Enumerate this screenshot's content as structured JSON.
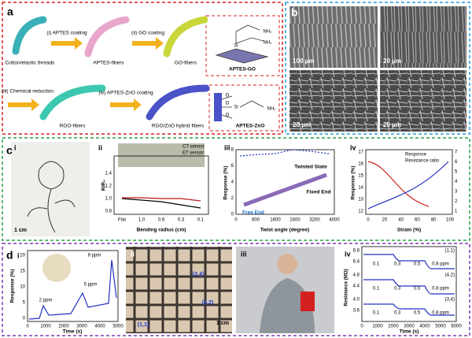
{
  "a": {
    "label": "a",
    "fibers": [
      "Cotton/elastic threads",
      "APTES-fibers",
      "GO-fibers",
      "RGO-fibers",
      "RGO/ZnO hybrid fibers"
    ],
    "steps": [
      "(i) APTES coating",
      "(ii) GO coating",
      "(iii) Chemical reduction",
      "(iv) APTES-ZnO coating"
    ],
    "insets": [
      "APTES-GO",
      "APTES-ZnO"
    ],
    "chem": {
      "si": "Si",
      "nh2": "NH₂",
      "o": "O"
    }
  },
  "b": {
    "label": "b",
    "scale_bars": [
      "100 μm",
      "20 μm",
      "20 μm",
      "20 μm"
    ]
  },
  "c": {
    "label": "c",
    "i": {
      "label": "i",
      "scale": "1 cm"
    },
    "ii": {
      "label": "ii",
      "ylabel": "R/R₀",
      "xlabel": "Bending radius (cm)",
      "xticks": [
        "Flat",
        "1.0",
        "0.6",
        "0.3",
        "0.1"
      ],
      "yticks": [
        "0.8",
        "1.0",
        "1.2",
        "1.4"
      ],
      "legend": [
        "CT sensor",
        "ET sensor"
      ]
    },
    "iii": {
      "label": "iii",
      "ylabel": "Response (%)",
      "xlabel": "Twist angle (degree)",
      "xticks": [
        "0",
        "800",
        "1600",
        "2400",
        "3200",
        "4000"
      ],
      "yticks": [
        "0",
        "2",
        "4",
        "6",
        "8"
      ],
      "annotations": [
        "Twisted State",
        "Free End",
        "Fixed End"
      ]
    },
    "iv": {
      "label": "iv",
      "ylabel": "Response (%)",
      "xlabel": "Strain (%)",
      "xticks": [
        "0",
        "20",
        "40",
        "60",
        "80",
        "100"
      ],
      "yticks": [
        "12",
        "13",
        "14",
        "15",
        "16",
        "17"
      ],
      "y2ticks": [
        "1",
        "2",
        "3",
        "4",
        "5",
        "6",
        "7"
      ],
      "legend": [
        "Response",
        "Resistance ratio"
      ]
    }
  },
  "d": {
    "label": "d",
    "i": {
      "label": "i",
      "ylabel": "Response (%)",
      "xlabel": "Time (s)",
      "xticks": [
        "0",
        "1000",
        "2000",
        "3000",
        "4000",
        "5000"
      ],
      "yticks": [
        "0",
        "5",
        "10",
        "15",
        "20"
      ],
      "annotations": [
        "2 ppm",
        "5 ppm",
        "8 ppm"
      ]
    },
    "ii": {
      "label": "ii",
      "points": [
        "(3,4)",
        "(4,2)",
        "(1,1)"
      ],
      "scale": "1 cm"
    },
    "iii": {
      "label": "iii"
    },
    "iv": {
      "label": "iv",
      "ylabel": "Resistance (MΩ)",
      "xlabel": "Time (s)",
      "xticks": [
        "0",
        "1000",
        "2000",
        "3000",
        "4000",
        "5000",
        "6000"
      ],
      "rows": [
        {
          "yticks": [
            "6.8",
            "6.4"
          ],
          "legend": "(1,1)"
        },
        {
          "yticks": [
            "4.8",
            "4.4"
          ],
          "legend": "(4,2)"
        },
        {
          "yticks": [
            "4.0",
            "3.6"
          ],
          "legend": "(3,4)"
        }
      ],
      "annotations": [
        "0.1",
        "0.3",
        "0.5",
        "0.8 ppm"
      ]
    }
  }
}
